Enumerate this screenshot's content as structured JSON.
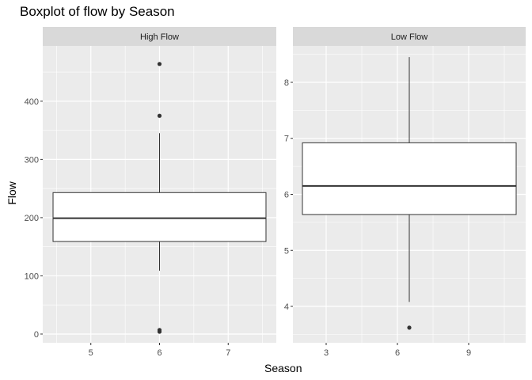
{
  "chart_data": {
    "type": "boxplot",
    "title": "Boxplot of flow by Season",
    "xlabel": "Season",
    "ylabel": "Flow",
    "facet_by": "Season",
    "grid": true,
    "legend": "none",
    "panels": [
      {
        "strip_label": "High Flow",
        "xlim": [
          4.3,
          7.7
        ],
        "x_ticks": [
          5,
          6,
          7
        ],
        "ylim": [
          -15,
          495
        ],
        "y_ticks": [
          0,
          100,
          200,
          300,
          400
        ],
        "box": {
          "x": 6,
          "xmin": 4.45,
          "xmax": 7.55,
          "whisker_low": 109,
          "q1": 159,
          "median": 199,
          "q3": 243,
          "whisker_high": 345
        },
        "outliers": [
          464,
          375,
          7,
          4
        ]
      },
      {
        "strip_label": "Low Flow",
        "xlim": [
          1.6,
          11.4
        ],
        "x_ticks": [
          3,
          6,
          9
        ],
        "ylim": [
          3.35,
          8.65
        ],
        "y_ticks": [
          4,
          5,
          6,
          7,
          8
        ],
        "box": {
          "x": 6.5,
          "xmin": 2.0,
          "xmax": 11.0,
          "whisker_low": 4.08,
          "q1": 5.64,
          "median": 6.15,
          "q3": 6.92,
          "whisker_high": 8.45
        },
        "outliers": [
          3.62
        ]
      }
    ]
  },
  "style": {
    "panel_background": "#ebebeb",
    "strip_background": "#d9d9d9",
    "grid_color": "#ffffff",
    "box_fill": "#ffffff",
    "box_line": "#333333",
    "outlier_color": "#333333",
    "tick_label_color": "#4d4d4d"
  }
}
